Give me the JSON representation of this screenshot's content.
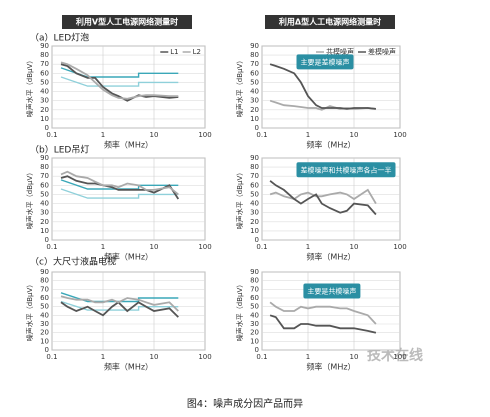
{
  "columns": [
    "利用V型人工电源网络测量时",
    "利用Δ型人工电源网络测量时"
  ],
  "rows": [
    "（a）LED灯泡",
    "（b）LED吊灯",
    "（c）大尺寸液晶电视"
  ],
  "caption": "图4：噪声成分因产品而异",
  "watermark": "技术在线",
  "chart_data": [
    {
      "type": "line",
      "xlabel": "频率（MHz）",
      "ylabel": "噪声水平（dBμV）",
      "log_x": true,
      "grid": true,
      "legend": "upper right",
      "xlim": [
        0.1,
        100
      ],
      "xticks": [
        0.1,
        1,
        10,
        100
      ],
      "ylim": [
        0,
        90
      ],
      "yticks": [
        0,
        10,
        20,
        30,
        40,
        50,
        60,
        70,
        80,
        90
      ],
      "x": [
        0.15,
        0.2,
        0.3,
        0.5,
        0.7,
        1,
        1.5,
        2,
        3,
        5,
        7,
        10,
        20,
        30
      ],
      "series": [
        {
          "name": "L1",
          "color": "#555555",
          "values": [
            70,
            68,
            60,
            55,
            55,
            45,
            38,
            35,
            30,
            36,
            34,
            35,
            33,
            34
          ]
        },
        {
          "name": "L2",
          "color": "#aaaaaa",
          "values": [
            72,
            70,
            65,
            58,
            50,
            42,
            36,
            33,
            32,
            35,
            36,
            36,
            35,
            35
          ]
        }
      ],
      "limits": [
        {
          "color": "#3aa7b8",
          "x": [
            0.15,
            0.5,
            0.5,
            5,
            5,
            30
          ],
          "values": [
            66,
            56,
            56,
            56,
            60,
            60
          ]
        },
        {
          "color": "#8fd0da",
          "x": [
            0.15,
            0.5,
            0.5,
            5,
            5,
            30
          ],
          "values": [
            56,
            46,
            46,
            46,
            50,
            50
          ]
        }
      ]
    },
    {
      "type": "line",
      "xlabel": "频率（MHz）",
      "ylabel": "噪声水平（dBμV）",
      "log_x": true,
      "grid": true,
      "legend": "upper right",
      "xlim": [
        0.1,
        100
      ],
      "xticks": [
        0.1,
        1,
        10,
        100
      ],
      "ylim": [
        0,
        90
      ],
      "yticks": [
        0,
        10,
        20,
        30,
        40,
        50,
        60,
        70,
        80,
        90
      ],
      "x": [
        0.15,
        0.2,
        0.3,
        0.5,
        0.7,
        1,
        1.5,
        2,
        3,
        5,
        7,
        10,
        20,
        30
      ],
      "series": [
        {
          "name": "共模噪声",
          "color": "#aaaaaa",
          "values": [
            30,
            28,
            25,
            24,
            23,
            22,
            22,
            20,
            24,
            21,
            22,
            21,
            22,
            21
          ]
        },
        {
          "name": "差模噪声",
          "color": "#555555",
          "values": [
            70,
            68,
            65,
            60,
            50,
            35,
            25,
            22,
            22,
            22,
            21,
            22,
            22,
            21
          ]
        }
      ],
      "annotation": "主要是差模噪声"
    },
    {
      "type": "line",
      "xlabel": "频率（MHz）",
      "ylabel": "噪声水平（dBμV）",
      "log_x": true,
      "grid": true,
      "xlim": [
        0.1,
        100
      ],
      "xticks": [
        0.1,
        1,
        10,
        100
      ],
      "ylim": [
        0,
        90
      ],
      "yticks": [
        0,
        10,
        20,
        30,
        40,
        50,
        60,
        70,
        80,
        90
      ],
      "x": [
        0.15,
        0.2,
        0.3,
        0.5,
        0.7,
        1,
        1.5,
        2,
        3,
        5,
        7,
        10,
        20,
        30
      ],
      "series": [
        {
          "color": "#555555",
          "values": [
            68,
            70,
            65,
            62,
            62,
            60,
            58,
            55,
            55,
            55,
            55,
            52,
            60,
            45
          ]
        },
        {
          "color": "#aaaaaa",
          "values": [
            72,
            75,
            70,
            68,
            64,
            60,
            60,
            58,
            62,
            60,
            55,
            55,
            58,
            50
          ]
        }
      ],
      "limits": [
        {
          "color": "#3aa7b8",
          "x": [
            0.15,
            0.5,
            0.5,
            5,
            5,
            30
          ],
          "values": [
            66,
            56,
            56,
            56,
            60,
            60
          ]
        },
        {
          "color": "#8fd0da",
          "x": [
            0.15,
            0.5,
            0.5,
            5,
            5,
            30
          ],
          "values": [
            56,
            46,
            46,
            46,
            50,
            50
          ]
        }
      ]
    },
    {
      "type": "line",
      "xlabel": "频率（MHz）",
      "ylabel": "噪声水平（dBμV）",
      "log_x": true,
      "grid": true,
      "xlim": [
        0.1,
        100
      ],
      "xticks": [
        0.1,
        1,
        10,
        100
      ],
      "ylim": [
        0,
        90
      ],
      "yticks": [
        0,
        10,
        20,
        30,
        40,
        50,
        60,
        70,
        80,
        90
      ],
      "x": [
        0.15,
        0.2,
        0.3,
        0.5,
        0.7,
        1,
        1.5,
        2,
        3,
        5,
        7,
        10,
        20,
        30
      ],
      "series": [
        {
          "color": "#aaaaaa",
          "values": [
            50,
            52,
            48,
            45,
            50,
            52,
            48,
            48,
            50,
            52,
            50,
            45,
            55,
            40
          ]
        },
        {
          "color": "#555555",
          "values": [
            65,
            60,
            55,
            45,
            40,
            45,
            50,
            40,
            35,
            30,
            32,
            40,
            38,
            28
          ]
        }
      ],
      "annotation": "差模噪声和共模噪声各占一半"
    },
    {
      "type": "line",
      "xlabel": "频率（MHz）",
      "ylabel": "噪声水平（dBμV）",
      "log_x": true,
      "grid": true,
      "xlim": [
        0.1,
        100
      ],
      "xticks": [
        0.1,
        1,
        10,
        100
      ],
      "ylim": [
        0,
        90
      ],
      "yticks": [
        0,
        10,
        20,
        30,
        40,
        50,
        60,
        70,
        80,
        90
      ],
      "x": [
        0.15,
        0.2,
        0.3,
        0.5,
        0.7,
        1,
        1.5,
        2,
        3,
        5,
        7,
        10,
        20,
        30
      ],
      "series": [
        {
          "color": "#555555",
          "values": [
            55,
            50,
            45,
            50,
            45,
            40,
            50,
            55,
            45,
            55,
            50,
            45,
            48,
            38
          ]
        },
        {
          "color": "#aaaaaa",
          "values": [
            62,
            60,
            58,
            58,
            55,
            55,
            58,
            55,
            60,
            58,
            55,
            52,
            55,
            45
          ]
        }
      ],
      "limits": [
        {
          "color": "#3aa7b8",
          "x": [
            0.15,
            0.5,
            0.5,
            5,
            5,
            30
          ],
          "values": [
            66,
            56,
            56,
            56,
            60,
            60
          ]
        },
        {
          "color": "#8fd0da",
          "x": [
            0.15,
            0.5,
            0.5,
            5,
            5,
            30
          ],
          "values": [
            56,
            46,
            46,
            46,
            50,
            50
          ]
        }
      ]
    },
    {
      "type": "line",
      "xlabel": "频率（MHz）",
      "ylabel": "噪声水平（dBμV）",
      "log_x": true,
      "grid": true,
      "xlim": [
        0.1,
        100
      ],
      "xticks": [
        0.1,
        1,
        10,
        100
      ],
      "ylim": [
        0,
        90
      ],
      "yticks": [
        0,
        10,
        20,
        30,
        40,
        50,
        60,
        70,
        80,
        90
      ],
      "x": [
        0.15,
        0.2,
        0.3,
        0.5,
        0.7,
        1,
        1.5,
        2,
        3,
        5,
        7,
        10,
        20,
        30
      ],
      "series": [
        {
          "color": "#aaaaaa",
          "values": [
            55,
            50,
            45,
            45,
            50,
            48,
            50,
            50,
            50,
            48,
            48,
            45,
            40,
            30
          ]
        },
        {
          "color": "#555555",
          "values": [
            40,
            38,
            25,
            25,
            30,
            30,
            28,
            28,
            28,
            25,
            25,
            25,
            22,
            20
          ]
        }
      ],
      "annotation": "主要是共模噪声"
    }
  ]
}
